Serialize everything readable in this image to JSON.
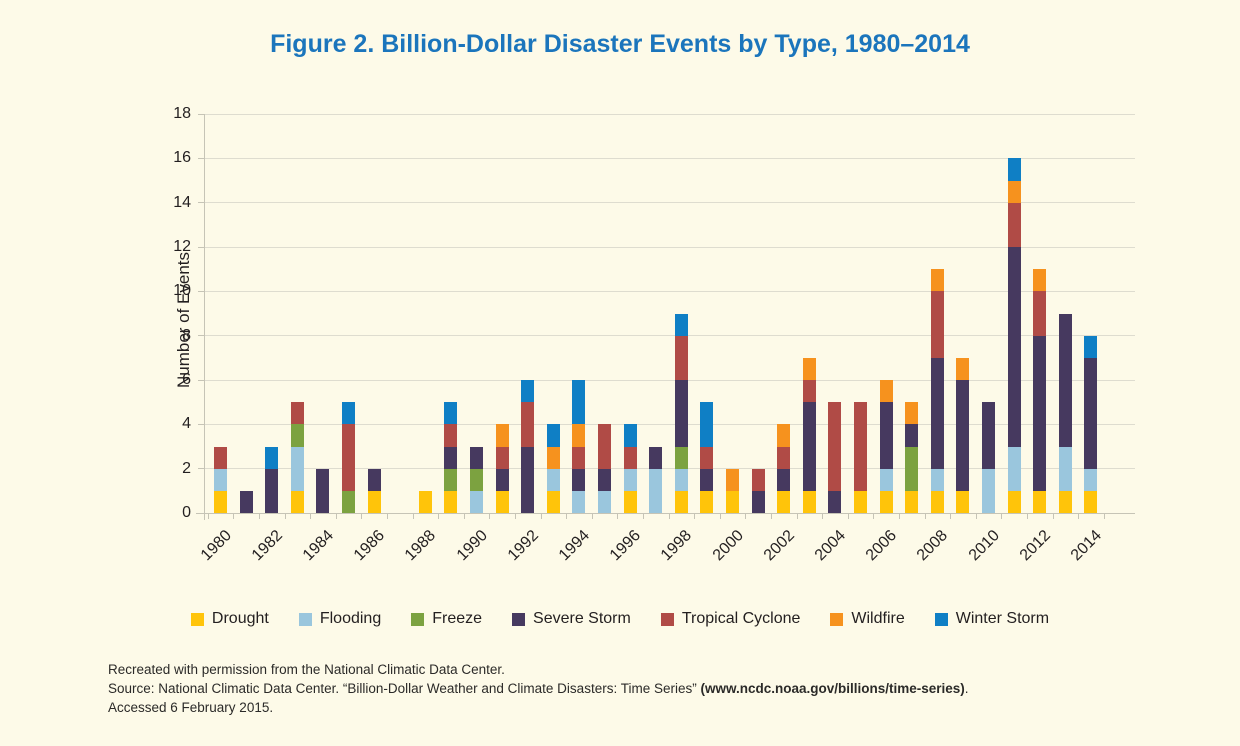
{
  "figure": {
    "background_color": "#fdfae8",
    "title_color": "#1b75bc"
  },
  "chart_data": {
    "type": "bar",
    "stacked": true,
    "title": "Figure 2. Billion-Dollar Disaster Events by Type, 1980–2014",
    "xlabel": "",
    "ylabel": "Number of Events",
    "ylim": [
      0,
      18
    ],
    "ytick_step": 2,
    "grid": true,
    "legend_position": "bottom",
    "categories": [
      1980,
      1981,
      1982,
      1983,
      1984,
      1985,
      1986,
      1987,
      1988,
      1989,
      1990,
      1991,
      1992,
      1993,
      1994,
      1995,
      1996,
      1997,
      1998,
      1999,
      2000,
      2001,
      2002,
      2003,
      2004,
      2005,
      2006,
      2007,
      2008,
      2009,
      2010,
      2011,
      2012,
      2013,
      2014
    ],
    "xtick_labels": [
      "1980",
      "1982",
      "1984",
      "1986",
      "1988",
      "1990",
      "1992",
      "1994",
      "1996",
      "1998",
      "2000",
      "2002",
      "2004",
      "2006",
      "2008",
      "2010",
      "2012",
      "2014"
    ],
    "series": [
      {
        "name": "Drought",
        "color": "#ffc40a",
        "values": [
          1,
          0,
          0,
          1,
          0,
          0,
          1,
          0,
          1,
          1,
          0,
          1,
          0,
          1,
          0,
          0,
          1,
          0,
          1,
          1,
          1,
          0,
          1,
          1,
          0,
          1,
          1,
          1,
          1,
          1,
          0,
          1,
          1,
          1,
          1
        ]
      },
      {
        "name": "Flooding",
        "color": "#9ac6dd",
        "values": [
          1,
          0,
          0,
          2,
          0,
          0,
          0,
          0,
          0,
          0,
          1,
          0,
          0,
          1,
          1,
          1,
          1,
          2,
          1,
          0,
          0,
          0,
          0,
          0,
          0,
          0,
          1,
          0,
          1,
          0,
          2,
          2,
          0,
          2,
          1
        ]
      },
      {
        "name": "Freeze",
        "color": "#7ca240",
        "values": [
          0,
          0,
          0,
          1,
          0,
          1,
          0,
          0,
          0,
          1,
          1,
          0,
          0,
          0,
          0,
          0,
          0,
          0,
          1,
          0,
          0,
          0,
          0,
          0,
          0,
          0,
          0,
          2,
          0,
          0,
          0,
          0,
          0,
          0,
          0
        ]
      },
      {
        "name": "Severe Storm",
        "color": "#46395f",
        "values": [
          0,
          1,
          2,
          0,
          2,
          0,
          1,
          0,
          0,
          1,
          1,
          1,
          3,
          0,
          1,
          1,
          0,
          1,
          3,
          1,
          0,
          1,
          1,
          4,
          1,
          0,
          3,
          1,
          5,
          5,
          3,
          9,
          7,
          6,
          5
        ]
      },
      {
        "name": "Tropical Cyclone",
        "color": "#b04b46",
        "values": [
          1,
          0,
          0,
          1,
          0,
          3,
          0,
          0,
          0,
          1,
          0,
          1,
          2,
          0,
          1,
          2,
          1,
          0,
          2,
          1,
          0,
          1,
          1,
          1,
          4,
          4,
          0,
          0,
          3,
          0,
          0,
          2,
          2,
          0,
          0
        ]
      },
      {
        "name": "Wildfire",
        "color": "#f6921e",
        "values": [
          0,
          0,
          0,
          0,
          0,
          0,
          0,
          0,
          0,
          0,
          0,
          1,
          0,
          1,
          1,
          0,
          0,
          0,
          0,
          0,
          1,
          0,
          1,
          1,
          0,
          0,
          1,
          1,
          1,
          1,
          0,
          1,
          1,
          0,
          0
        ]
      },
      {
        "name": "Winter Storm",
        "color": "#0f7fc5",
        "values": [
          0,
          0,
          1,
          0,
          0,
          1,
          0,
          0,
          0,
          1,
          0,
          0,
          1,
          1,
          2,
          0,
          1,
          0,
          1,
          2,
          0,
          0,
          0,
          0,
          0,
          0,
          0,
          0,
          0,
          0,
          0,
          1,
          0,
          0,
          1
        ]
      }
    ]
  },
  "footer": {
    "line1": "Recreated with permission from the National Climatic Data Center.",
    "line2_prefix": "Source: National Climatic Data Center. “Billion-Dollar Weather and Climate Disasters: Time Series” ",
    "line2_bold": "(www.ncdc.noaa.gov/billions/time-series)",
    "line2_suffix": ".",
    "line3": "Accessed 6 February 2015."
  }
}
